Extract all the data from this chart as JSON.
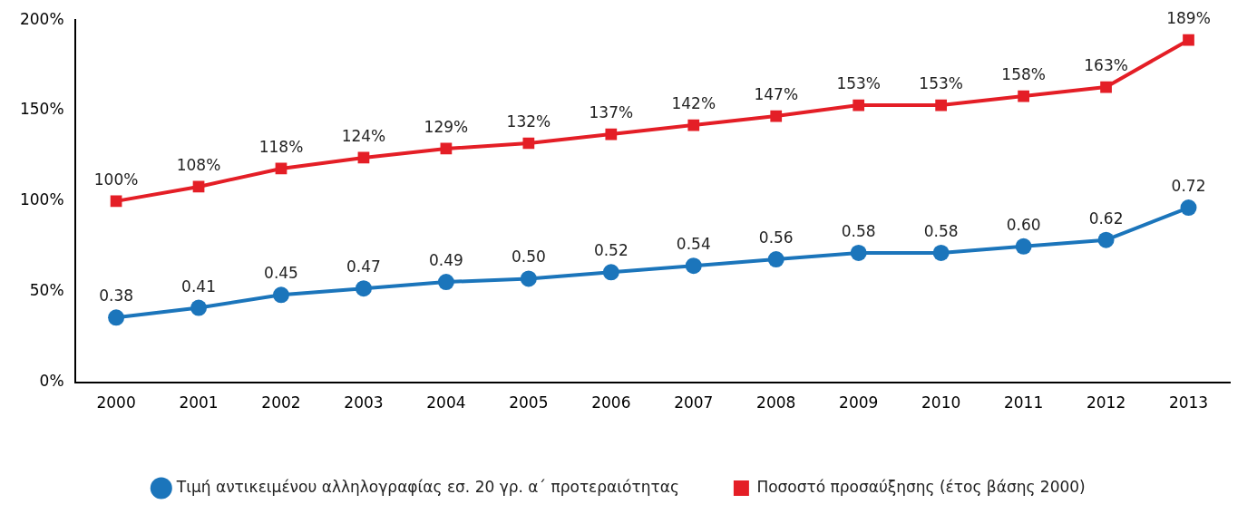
{
  "chart_data": {
    "type": "line",
    "categories": [
      "2000",
      "2001",
      "2002",
      "2003",
      "2004",
      "2005",
      "2006",
      "2007",
      "2008",
      "2009",
      "2010",
      "2011",
      "2012",
      "2013"
    ],
    "series": [
      {
        "name": "Τιμή αντικειμένου αλληλογραφίας εσ. 20 γρ. α΄ προτεραιότητας",
        "color": "#1b75bb",
        "marker": "circle",
        "axis": "y2",
        "values": [
          0.38,
          0.41,
          0.45,
          0.47,
          0.49,
          0.5,
          0.52,
          0.54,
          0.56,
          0.58,
          0.58,
          0.6,
          0.62,
          0.72
        ],
        "value_labels": [
          "0.38",
          "0.41",
          "0.45",
          "0.47",
          "0.49",
          "0.50",
          "0.52",
          "0.54",
          "0.56",
          "0.58",
          "0.58",
          "0.60",
          "0.62",
          "0.72"
        ]
      },
      {
        "name": "Ποσοστό προσαύξησης (έτος βάσης 2000)",
        "color": "#e41e26",
        "marker": "square",
        "values": [
          100,
          108,
          118,
          124,
          129,
          132,
          137,
          142,
          147,
          153,
          153,
          158,
          163,
          189
        ],
        "value_labels": [
          "100%",
          "108%",
          "118%",
          "124%",
          "129%",
          "132%",
          "137%",
          "142%",
          "147%",
          "153%",
          "153%",
          "158%",
          "163%",
          "189%"
        ]
      }
    ],
    "ylim": [
      0,
      200
    ],
    "yticks": [
      {
        "value": 0,
        "label": "0%"
      },
      {
        "value": 50,
        "label": "50%"
      },
      {
        "value": 100,
        "label": "100%"
      },
      {
        "value": 150,
        "label": "150%"
      },
      {
        "value": 200,
        "label": "200%"
      }
    ],
    "y2lim": [
      0.18,
      1.3
    ],
    "tick_labels": "xy",
    "grid": false,
    "legend": "bottom",
    "line_style": "solid"
  }
}
